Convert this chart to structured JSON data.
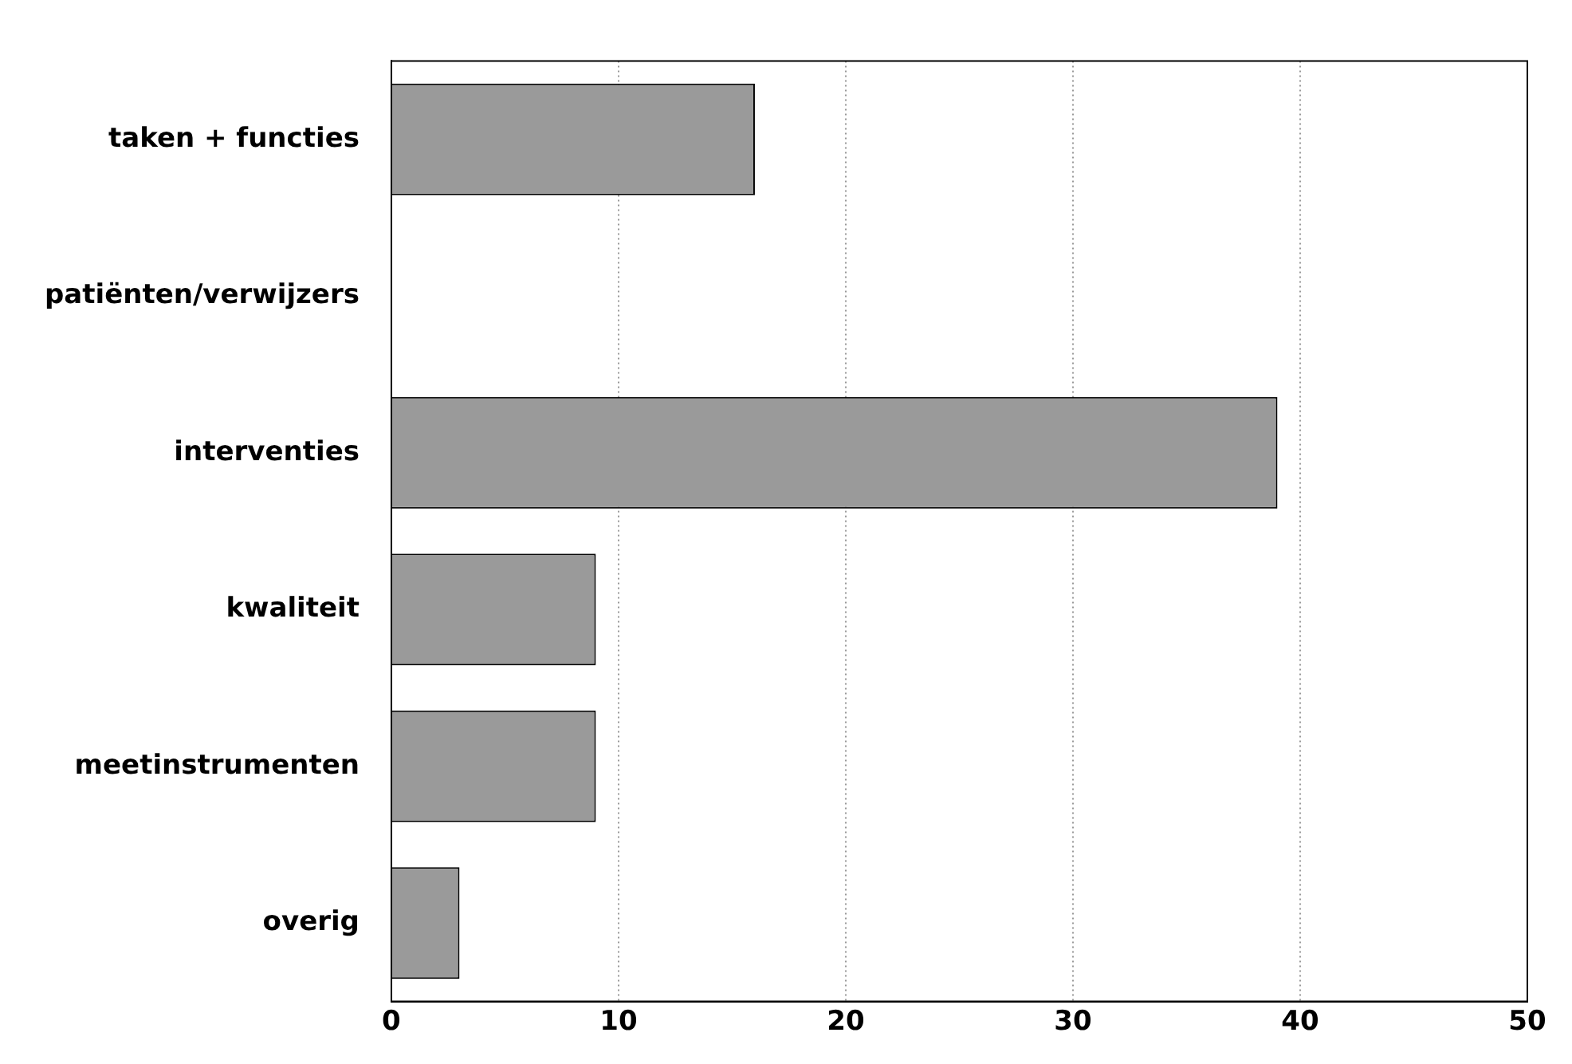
{
  "chart_data": {
    "type": "bar",
    "orientation": "horizontal",
    "categories": [
      "taken + functies",
      "patiënten/verwijzers",
      "interventies",
      "kwaliteit",
      "meetinstrumenten",
      "overig"
    ],
    "values": [
      16,
      0,
      39,
      9,
      9,
      3
    ],
    "color": "#9a9a9a",
    "xlim": [
      0,
      50
    ],
    "xticks": [
      0,
      10,
      20,
      30,
      40,
      50
    ],
    "grid": "x"
  }
}
